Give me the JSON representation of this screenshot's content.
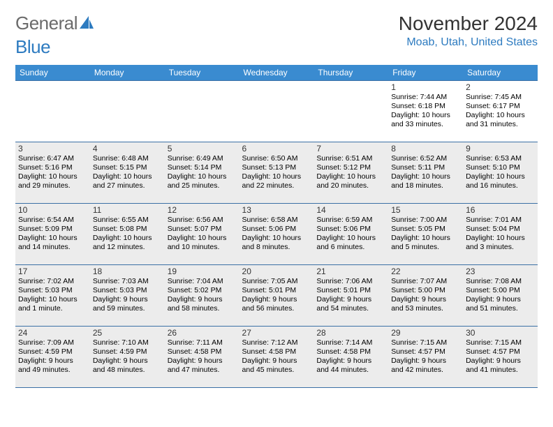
{
  "logo": {
    "word1": "General",
    "word2": "Blue"
  },
  "title": "November 2024",
  "location": "Moab, Utah, United States",
  "colors": {
    "header_bg": "#3a8bd0",
    "header_text": "#ffffff",
    "cell_border": "#3a6fa5",
    "shade_bg": "#ececec",
    "location_color": "#2d7bc0",
    "logo_gray": "#6b6b6b"
  },
  "day_headers": [
    "Sunday",
    "Monday",
    "Tuesday",
    "Wednesday",
    "Thursday",
    "Friday",
    "Saturday"
  ],
  "weeks": [
    [
      {
        "blank": true
      },
      {
        "blank": true
      },
      {
        "blank": true
      },
      {
        "blank": true
      },
      {
        "blank": true
      },
      {
        "day": 1,
        "sunrise": "7:44 AM",
        "sunset": "6:18 PM",
        "daylight": "10 hours and 33 minutes."
      },
      {
        "day": 2,
        "sunrise": "7:45 AM",
        "sunset": "6:17 PM",
        "daylight": "10 hours and 31 minutes."
      }
    ],
    [
      {
        "day": 3,
        "shade": true,
        "sunrise": "6:47 AM",
        "sunset": "5:16 PM",
        "daylight": "10 hours and 29 minutes."
      },
      {
        "day": 4,
        "shade": true,
        "sunrise": "6:48 AM",
        "sunset": "5:15 PM",
        "daylight": "10 hours and 27 minutes."
      },
      {
        "day": 5,
        "shade": true,
        "sunrise": "6:49 AM",
        "sunset": "5:14 PM",
        "daylight": "10 hours and 25 minutes."
      },
      {
        "day": 6,
        "shade": true,
        "sunrise": "6:50 AM",
        "sunset": "5:13 PM",
        "daylight": "10 hours and 22 minutes."
      },
      {
        "day": 7,
        "shade": true,
        "sunrise": "6:51 AM",
        "sunset": "5:12 PM",
        "daylight": "10 hours and 20 minutes."
      },
      {
        "day": 8,
        "shade": true,
        "sunrise": "6:52 AM",
        "sunset": "5:11 PM",
        "daylight": "10 hours and 18 minutes."
      },
      {
        "day": 9,
        "shade": true,
        "sunrise": "6:53 AM",
        "sunset": "5:10 PM",
        "daylight": "10 hours and 16 minutes."
      }
    ],
    [
      {
        "day": 10,
        "shade": true,
        "sunrise": "6:54 AM",
        "sunset": "5:09 PM",
        "daylight": "10 hours and 14 minutes."
      },
      {
        "day": 11,
        "shade": true,
        "sunrise": "6:55 AM",
        "sunset": "5:08 PM",
        "daylight": "10 hours and 12 minutes."
      },
      {
        "day": 12,
        "shade": true,
        "sunrise": "6:56 AM",
        "sunset": "5:07 PM",
        "daylight": "10 hours and 10 minutes."
      },
      {
        "day": 13,
        "shade": true,
        "sunrise": "6:58 AM",
        "sunset": "5:06 PM",
        "daylight": "10 hours and 8 minutes."
      },
      {
        "day": 14,
        "shade": true,
        "sunrise": "6:59 AM",
        "sunset": "5:06 PM",
        "daylight": "10 hours and 6 minutes."
      },
      {
        "day": 15,
        "shade": true,
        "sunrise": "7:00 AM",
        "sunset": "5:05 PM",
        "daylight": "10 hours and 5 minutes."
      },
      {
        "day": 16,
        "shade": true,
        "sunrise": "7:01 AM",
        "sunset": "5:04 PM",
        "daylight": "10 hours and 3 minutes."
      }
    ],
    [
      {
        "day": 17,
        "shade": true,
        "sunrise": "7:02 AM",
        "sunset": "5:03 PM",
        "daylight": "10 hours and 1 minute."
      },
      {
        "day": 18,
        "shade": true,
        "sunrise": "7:03 AM",
        "sunset": "5:03 PM",
        "daylight": "9 hours and 59 minutes."
      },
      {
        "day": 19,
        "shade": true,
        "sunrise": "7:04 AM",
        "sunset": "5:02 PM",
        "daylight": "9 hours and 58 minutes."
      },
      {
        "day": 20,
        "shade": true,
        "sunrise": "7:05 AM",
        "sunset": "5:01 PM",
        "daylight": "9 hours and 56 minutes."
      },
      {
        "day": 21,
        "shade": true,
        "sunrise": "7:06 AM",
        "sunset": "5:01 PM",
        "daylight": "9 hours and 54 minutes."
      },
      {
        "day": 22,
        "shade": true,
        "sunrise": "7:07 AM",
        "sunset": "5:00 PM",
        "daylight": "9 hours and 53 minutes."
      },
      {
        "day": 23,
        "shade": true,
        "sunrise": "7:08 AM",
        "sunset": "5:00 PM",
        "daylight": "9 hours and 51 minutes."
      }
    ],
    [
      {
        "day": 24,
        "shade": true,
        "sunrise": "7:09 AM",
        "sunset": "4:59 PM",
        "daylight": "9 hours and 49 minutes."
      },
      {
        "day": 25,
        "shade": true,
        "sunrise": "7:10 AM",
        "sunset": "4:59 PM",
        "daylight": "9 hours and 48 minutes."
      },
      {
        "day": 26,
        "shade": true,
        "sunrise": "7:11 AM",
        "sunset": "4:58 PM",
        "daylight": "9 hours and 47 minutes."
      },
      {
        "day": 27,
        "shade": true,
        "sunrise": "7:12 AM",
        "sunset": "4:58 PM",
        "daylight": "9 hours and 45 minutes."
      },
      {
        "day": 28,
        "shade": true,
        "sunrise": "7:14 AM",
        "sunset": "4:58 PM",
        "daylight": "9 hours and 44 minutes."
      },
      {
        "day": 29,
        "shade": true,
        "sunrise": "7:15 AM",
        "sunset": "4:57 PM",
        "daylight": "9 hours and 42 minutes."
      },
      {
        "day": 30,
        "shade": true,
        "sunrise": "7:15 AM",
        "sunset": "4:57 PM",
        "daylight": "9 hours and 41 minutes."
      }
    ]
  ],
  "labels": {
    "sunrise": "Sunrise:",
    "sunset": "Sunset:",
    "daylight": "Daylight:"
  }
}
